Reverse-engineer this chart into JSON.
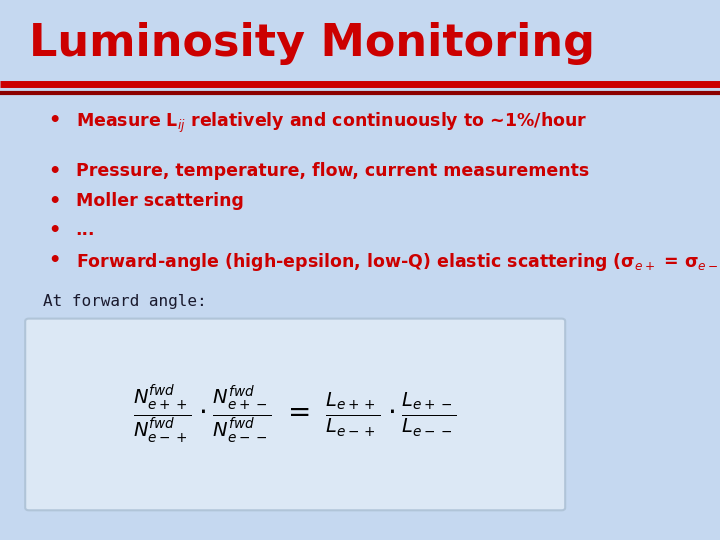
{
  "title": "Luminosity Monitoring",
  "title_color": "#cc0000",
  "title_fontsize": 32,
  "bg_color": "#c5d8f0",
  "separator_color1": "#cc0000",
  "separator_color2": "#8b0000",
  "text_color": "#cc0000",
  "bullet1": "Measure L$_{ij}$ relatively and continuously to ~1%/hour",
  "bullet2": "Pressure, temperature, flow, current measurements",
  "bullet3": "Moller scattering",
  "bullet4": "...",
  "bullet5": "Forward-angle (high-epsilon, low-Q) elastic scattering (σ$_{e+}$ = σ$_{e-}$)",
  "forward_label": "At forward angle:",
  "formula_box_color": "#dce8f5",
  "formula_box_edge": "#b0c4d8"
}
